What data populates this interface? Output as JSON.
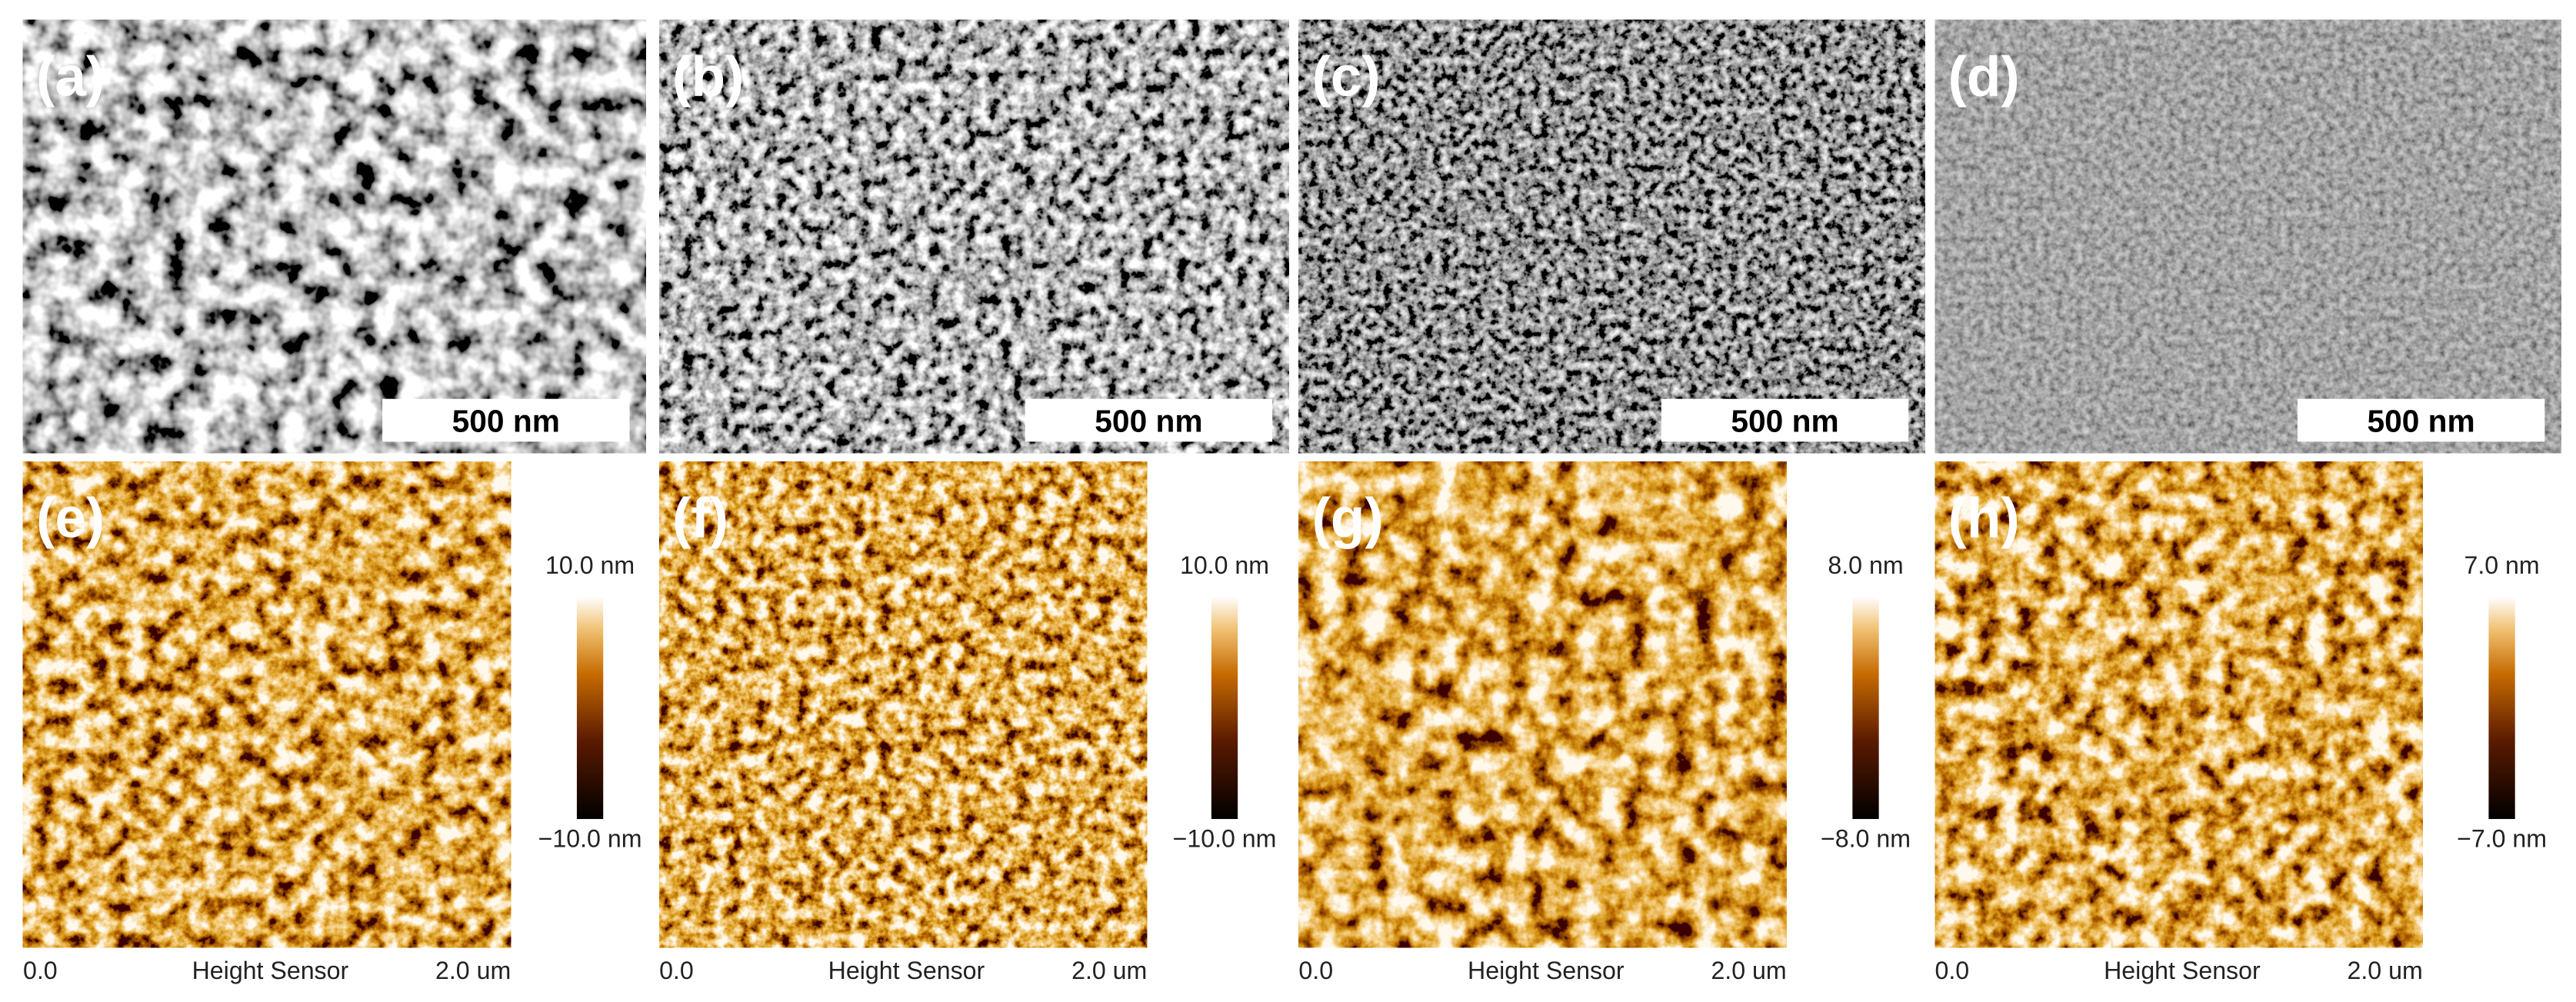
{
  "sem_panels": [
    {
      "label": "(a)",
      "scale_bar": "500 nm"
    },
    {
      "label": "(b)",
      "scale_bar": "500 nm"
    },
    {
      "label": "(c)",
      "scale_bar": "500 nm"
    },
    {
      "label": "(d)",
      "scale_bar": "500 nm"
    }
  ],
  "afm_panels": [
    {
      "label": "(e)",
      "colorbar_max": "10.0 nm",
      "colorbar_min": "−10.0 nm",
      "x_start": "0.0",
      "x_label": "Height Sensor",
      "x_end": "2.0 um"
    },
    {
      "label": "(f)",
      "colorbar_max": "10.0 nm",
      "colorbar_min": "−10.0 nm",
      "x_start": "0.0",
      "x_label": "Height Sensor",
      "x_end": "2.0 um"
    },
    {
      "label": "(g)",
      "colorbar_max": "8.0 nm",
      "colorbar_min": "−8.0 nm",
      "x_start": "0.0",
      "x_label": "Height Sensor",
      "x_end": "2.0 um"
    },
    {
      "label": "(h)",
      "colorbar_max": "7.0 nm",
      "colorbar_min": "−7.0 nm",
      "x_start": "0.0",
      "x_label": "Height Sensor",
      "x_end": "2.0 um"
    }
  ]
}
